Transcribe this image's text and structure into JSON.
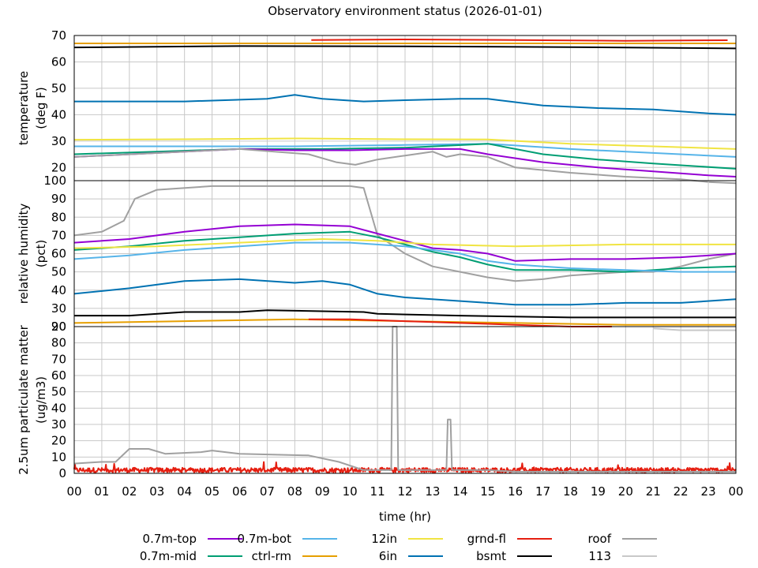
{
  "chart_data": {
    "type": "line",
    "title": "Observatory environment status (2026-01-01)",
    "xlabel": "time (hr)",
    "x_ticks": [
      "00",
      "01",
      "02",
      "03",
      "04",
      "05",
      "06",
      "07",
      "08",
      "09",
      "10",
      "11",
      "12",
      "13",
      "14",
      "15",
      "16",
      "17",
      "18",
      "19",
      "20",
      "21",
      "22",
      "23",
      "00"
    ],
    "xlim": [
      0,
      24
    ],
    "grid": true,
    "legend_placement": "bottom",
    "legend": [
      {
        "name": "0.7m-top",
        "color": "#9400d3"
      },
      {
        "name": "0.7m-mid",
        "color": "#009e73"
      },
      {
        "name": "0.7m-bot",
        "color": "#56b4e9"
      },
      {
        "name": "ctrl-rm",
        "color": "#e69f00"
      },
      {
        "name": "12in",
        "color": "#f0e442"
      },
      {
        "name": "6in",
        "color": "#0072b2"
      },
      {
        "name": "grnd-fl",
        "color": "#e51e10"
      },
      {
        "name": "bsmt",
        "color": "#000000"
      },
      {
        "name": "roof",
        "color": "#a0a0a0"
      },
      {
        "name": "113",
        "color": "#c8c8c8"
      }
    ],
    "panels": [
      {
        "ylabel": [
          "temperature",
          "(deg F)"
        ],
        "ylim": [
          15,
          70
        ],
        "y_ticks": [
          "20",
          "30",
          "40",
          "50",
          "60",
          "70"
        ],
        "series": [
          {
            "name": "ctrl-rm",
            "color": "#e69f00",
            "x": [
              0,
              24
            ],
            "y": [
              67,
              67
            ]
          },
          {
            "name": "grnd-fl",
            "color": "#e51e10",
            "x": [
              8.6,
              12,
              16,
              20,
              23.7
            ],
            "y": [
              68.3,
              68.5,
              68.3,
              68,
              68.2
            ]
          },
          {
            "name": "bsmt",
            "color": "#000000",
            "x": [
              0,
              6,
              12,
              18,
              24
            ],
            "y": [
              65.5,
              66,
              65.9,
              65.6,
              65.1
            ]
          },
          {
            "name": "6in",
            "color": "#0072b2",
            "x": [
              0,
              4,
              7,
              8,
              9,
              10.5,
              12,
              14,
              15,
              17,
              19,
              21,
              23,
              24
            ],
            "y": [
              45,
              45,
              46,
              47.5,
              46,
              45,
              45.5,
              46,
              46,
              43.5,
              42.5,
              42,
              40.5,
              40
            ]
          },
          {
            "name": "12in",
            "color": "#f0e442",
            "x": [
              0,
              4,
              8,
              12,
              15,
              18,
              21,
              24
            ],
            "y": [
              30.5,
              30.7,
              31,
              30.7,
              30.6,
              29,
              28,
              27
            ]
          },
          {
            "name": "0.7m-bot",
            "color": "#56b4e9",
            "x": [
              0,
              4,
              8,
              12,
              15,
              18,
              21,
              24
            ],
            "y": [
              28,
              28,
              28,
              28.5,
              29,
              27,
              25.5,
              24
            ]
          },
          {
            "name": "0.7m-mid",
            "color": "#009e73",
            "x": [
              0,
              3,
              6,
              9,
              12,
              15,
              17,
              19,
              21,
              24
            ],
            "y": [
              25,
              26,
              27,
              27,
              27.5,
              29,
              25,
              23,
              21.5,
              19.5
            ]
          },
          {
            "name": "0.7m-top",
            "color": "#9400d3",
            "x": [
              0,
              3,
              6,
              8,
              10,
              12,
              14,
              15,
              17,
              19,
              21,
              23,
              24
            ],
            "y": [
              24,
              25.5,
              27,
              26.5,
              26.5,
              27,
              27,
              25,
              22,
              20,
              18.5,
              17,
              16.5
            ]
          },
          {
            "name": "roof",
            "color": "#a0a0a0",
            "x": [
              0,
              4,
              6,
              8.5,
              9.5,
              10.2,
              11,
              12,
              13,
              13.5,
              14,
              15,
              16,
              18,
              20,
              22,
              23,
              24
            ],
            "y": [
              24,
              26,
              27,
              25,
              22,
              21,
              23,
              24.5,
              26,
              24,
              25,
              24,
              20,
              18,
              16.5,
              15.5,
              14.5,
              14
            ]
          }
        ]
      },
      {
        "ylabel": [
          "relative humidity",
          "(pct)"
        ],
        "ylim": [
          20,
          100
        ],
        "y_ticks": [
          "20",
          "30",
          "40",
          "50",
          "60",
          "70",
          "80",
          "90",
          "100"
        ],
        "series": [
          {
            "name": "roof",
            "color": "#a0a0a0",
            "x": [
              0,
              1,
              1.8,
              2.2,
              3,
              5,
              7,
              9,
              10,
              10.5,
              11,
              12,
              13,
              14,
              15,
              16,
              17,
              18,
              19,
              20,
              21,
              22,
              23,
              24
            ],
            "y": [
              70,
              72,
              78,
              90,
              95,
              97,
              97,
              97,
              97,
              96,
              70,
              60,
              53,
              50,
              47,
              45,
              46,
              48,
              49,
              50,
              50,
              53,
              57,
              60
            ]
          },
          {
            "name": "0.7m-top",
            "color": "#9400d3",
            "x": [
              0,
              2,
              4,
              6,
              8,
              10,
              11,
              12,
              13,
              14,
              15,
              16,
              18,
              20,
              22,
              24
            ],
            "y": [
              66,
              68,
              72,
              75,
              76,
              75,
              71,
              67,
              63,
              62,
              60,
              56,
              57,
              57,
              58,
              60
            ]
          },
          {
            "name": "0.7m-mid",
            "color": "#009e73",
            "x": [
              0,
              2,
              4,
              6,
              8,
              10,
              11,
              12,
              13,
              14,
              15,
              16,
              18,
              20,
              22,
              24
            ],
            "y": [
              62,
              64,
              67,
              69,
              71,
              72,
              69,
              65,
              61,
              58,
              54,
              51,
              51,
              50,
              52,
              53
            ]
          },
          {
            "name": "12in",
            "color": "#f0e442",
            "x": [
              0,
              3,
              6,
              9,
              11,
              13,
              16,
              20,
              24
            ],
            "y": [
              63,
              64,
              66,
              68,
              67,
              65,
              64,
              65,
              65
            ]
          },
          {
            "name": "0.7m-bot",
            "color": "#56b4e9",
            "x": [
              0,
              2,
              4,
              6,
              8,
              10,
              12,
              14,
              15,
              16,
              18,
              20,
              22,
              24
            ],
            "y": [
              57,
              59,
              62,
              64,
              66,
              66,
              64,
              60,
              56,
              54,
              52,
              51,
              50,
              50
            ]
          },
          {
            "name": "6in",
            "color": "#0072b2",
            "x": [
              0,
              2,
              4,
              6,
              8,
              9,
              10,
              11,
              12,
              14,
              16,
              18,
              20,
              22,
              24
            ],
            "y": [
              38,
              41,
              45,
              46,
              44,
              45,
              43,
              38,
              36,
              34,
              32,
              32,
              33,
              33,
              35
            ]
          },
          {
            "name": "bsmt",
            "color": "#000000",
            "x": [
              0,
              2,
              4,
              6,
              7,
              10.5,
              11,
              14,
              18,
              22,
              24
            ],
            "y": [
              26,
              26,
              28,
              28,
              29,
              28,
              27,
              26,
              25,
              25,
              25
            ]
          },
          {
            "name": "ctrl-rm",
            "color": "#e69f00",
            "x": [
              0,
              4,
              8,
              12,
              16,
              20,
              24
            ],
            "y": [
              22,
              23,
              24,
              23,
              22,
              21,
              21
            ]
          },
          {
            "name": "grnd-fl",
            "color": "#e51e10",
            "x": [
              8.5,
              10,
              12,
              14,
              16,
              18,
              19.5
            ],
            "y": [
              24,
              24,
              23,
              22,
              21,
              20,
              20
            ]
          },
          {
            "name": "113",
            "color": "#c8c8c8",
            "x": [
              21,
              22,
              23,
              24
            ],
            "y": [
              19,
              18,
              18,
              18
            ]
          }
        ]
      },
      {
        "ylabel": [
          "2.5um particulate matter",
          "(ug/m3)"
        ],
        "ylim": [
          0,
          90
        ],
        "y_ticks": [
          "0",
          "10",
          "20",
          "30",
          "40",
          "50",
          "60",
          "70",
          "80",
          "90"
        ],
        "series": [
          {
            "name": "grnd-fl",
            "color": "#e51e10",
            "x": [
              0,
              24
            ],
            "y": [
              2,
              2
            ],
            "noisy": true
          },
          {
            "name": "roof",
            "color": "#a0a0a0",
            "x": [
              0,
              1,
              1.5,
              2,
              2.7,
              3.3,
              4.6,
              5,
              6,
              8.5,
              9.6,
              10.5,
              11.5,
              11.55,
              11.7,
              11.75,
              13,
              13.5,
              13.55,
              13.65,
              13.7,
              15,
              16,
              24
            ],
            "y": [
              6,
              7,
              7,
              15,
              15,
              12,
              13,
              14,
              12,
              11,
              7,
              2,
              2,
              90,
              90,
              2,
              2,
              2,
              33,
              33,
              2,
              2,
              1,
              1
            ]
          }
        ]
      }
    ]
  }
}
